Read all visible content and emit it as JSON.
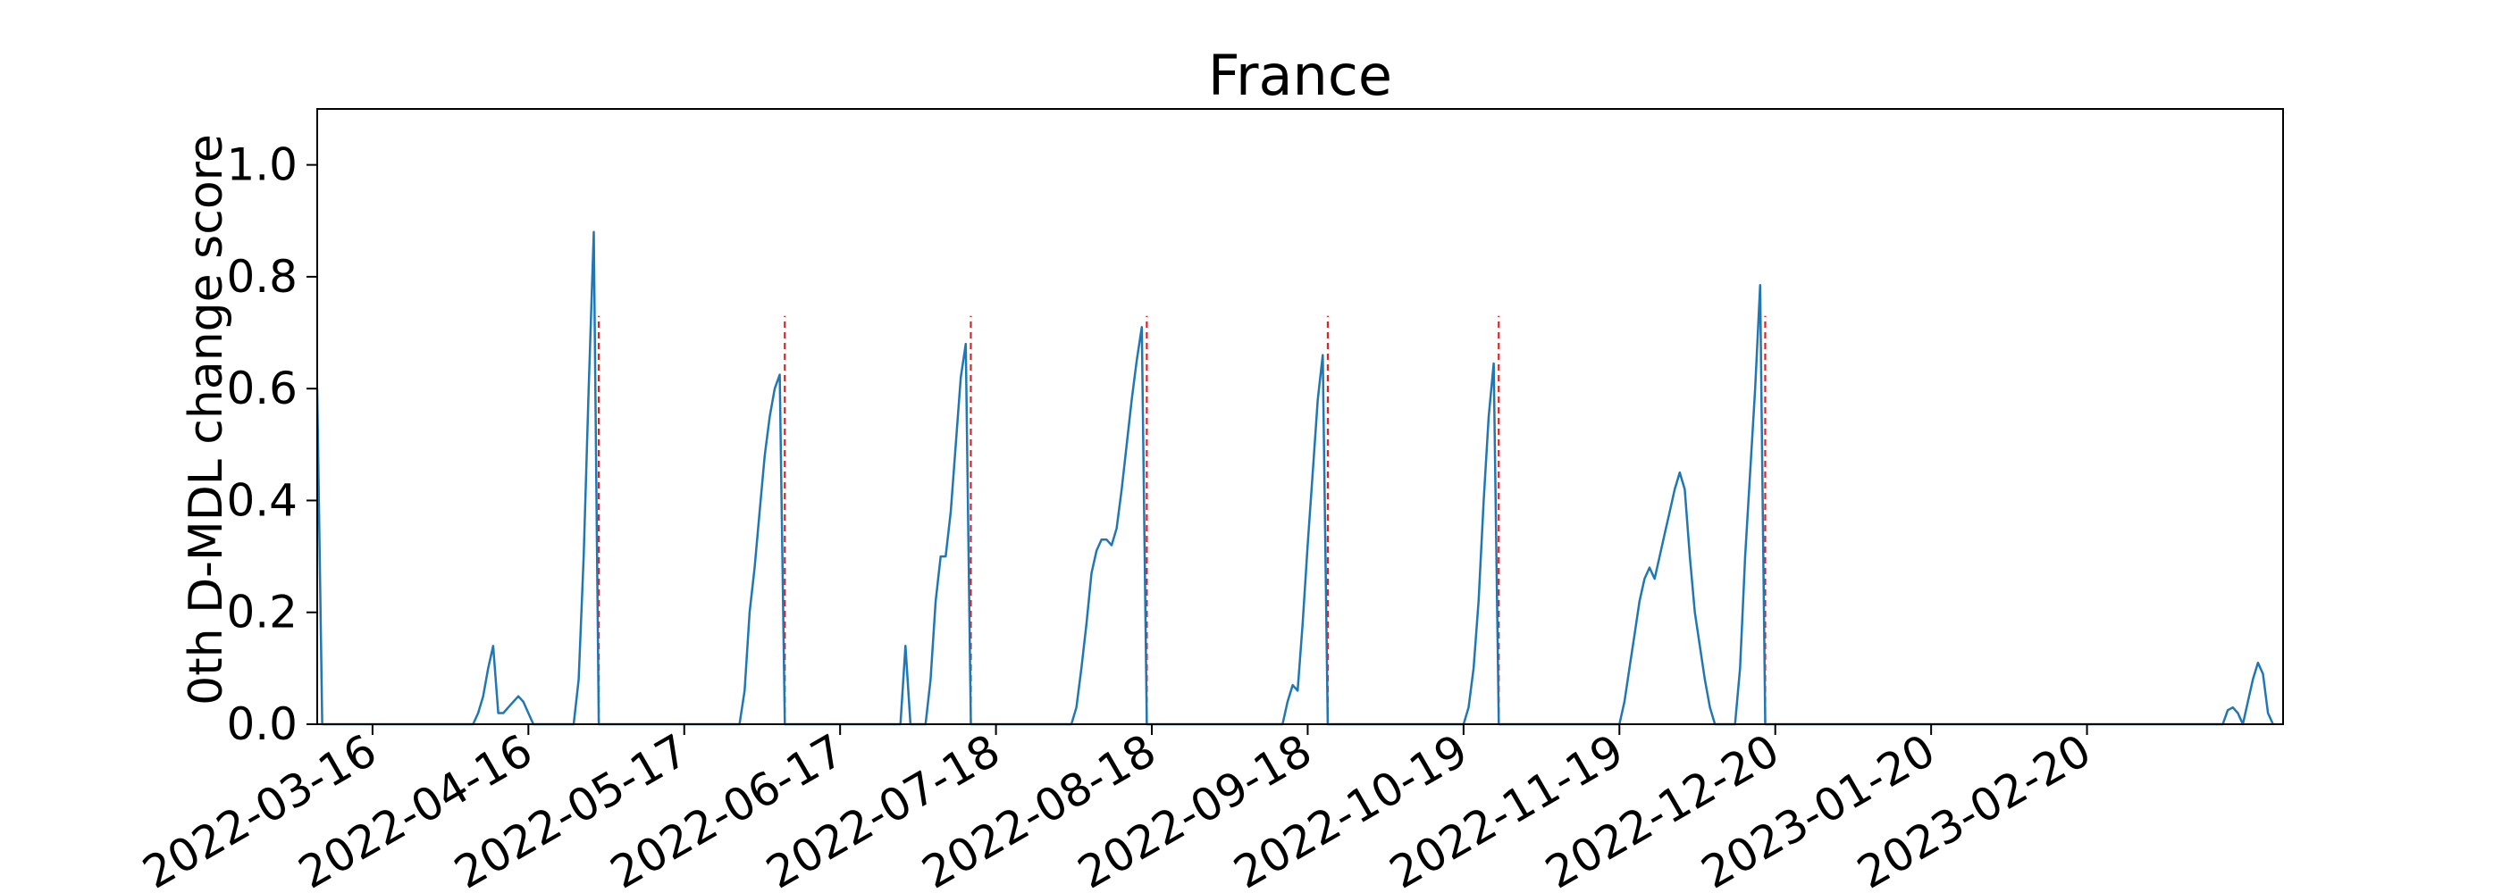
{
  "chart_data": {
    "type": "line",
    "title": "France",
    "xlabel": "",
    "ylabel": "0th D-MDL change score",
    "ylim": [
      0.0,
      1.1
    ],
    "xlim": [
      "2022-03-05",
      "2023-03-31"
    ],
    "yticks": [
      "0.0",
      "0.2",
      "0.4",
      "0.6",
      "0.8",
      "1.0"
    ],
    "xticks": [
      "2022-03-16",
      "2022-04-16",
      "2022-05-17",
      "2022-06-17",
      "2022-07-18",
      "2022-08-18",
      "2022-09-18",
      "2022-10-19",
      "2022-11-19",
      "2022-12-20",
      "2023-01-20",
      "2023-02-20"
    ],
    "grid": false,
    "colors": {
      "line": "#1f77b4",
      "change_points": "#d62728"
    },
    "series": [
      {
        "values": [
          [
            "2022-03-05",
            0.6
          ],
          [
            "2022-03-06",
            0.0
          ],
          [
            "2022-04-05",
            0.0
          ],
          [
            "2022-04-06",
            0.02
          ],
          [
            "2022-04-07",
            0.05
          ],
          [
            "2022-04-08",
            0.1
          ],
          [
            "2022-04-09",
            0.14
          ],
          [
            "2022-04-10",
            0.02
          ],
          [
            "2022-04-11",
            0.02
          ],
          [
            "2022-04-12",
            0.03
          ],
          [
            "2022-04-13",
            0.04
          ],
          [
            "2022-04-14",
            0.05
          ],
          [
            "2022-04-15",
            0.04
          ],
          [
            "2022-04-16",
            0.02
          ],
          [
            "2022-04-17",
            0.0
          ],
          [
            "2022-04-25",
            0.0
          ],
          [
            "2022-04-26",
            0.08
          ],
          [
            "2022-04-27",
            0.3
          ],
          [
            "2022-04-28",
            0.6
          ],
          [
            "2022-04-29",
            0.88
          ],
          [
            "2022-04-30",
            0.0
          ],
          [
            "2022-05-28",
            0.0
          ],
          [
            "2022-05-29",
            0.06
          ],
          [
            "2022-05-30",
            0.2
          ],
          [
            "2022-05-31",
            0.28
          ],
          [
            "2022-06-01",
            0.38
          ],
          [
            "2022-06-02",
            0.48
          ],
          [
            "2022-06-03",
            0.55
          ],
          [
            "2022-06-04",
            0.6
          ],
          [
            "2022-06-05",
            0.625
          ],
          [
            "2022-06-06",
            0.0
          ],
          [
            "2022-06-29",
            0.0
          ],
          [
            "2022-06-30",
            0.14
          ],
          [
            "2022-07-01",
            0.0
          ],
          [
            "2022-07-04",
            0.0
          ],
          [
            "2022-07-05",
            0.08
          ],
          [
            "2022-07-06",
            0.22
          ],
          [
            "2022-07-07",
            0.3
          ],
          [
            "2022-07-08",
            0.3
          ],
          [
            "2022-07-09",
            0.38
          ],
          [
            "2022-07-10",
            0.5
          ],
          [
            "2022-07-11",
            0.62
          ],
          [
            "2022-07-12",
            0.68
          ],
          [
            "2022-07-13",
            0.0
          ],
          [
            "2022-08-02",
            0.0
          ],
          [
            "2022-08-03",
            0.03
          ],
          [
            "2022-08-04",
            0.1
          ],
          [
            "2022-08-05",
            0.18
          ],
          [
            "2022-08-06",
            0.27
          ],
          [
            "2022-08-07",
            0.31
          ],
          [
            "2022-08-08",
            0.33
          ],
          [
            "2022-08-09",
            0.33
          ],
          [
            "2022-08-10",
            0.32
          ],
          [
            "2022-08-11",
            0.35
          ],
          [
            "2022-08-12",
            0.42
          ],
          [
            "2022-08-13",
            0.5
          ],
          [
            "2022-08-14",
            0.58
          ],
          [
            "2022-08-15",
            0.65
          ],
          [
            "2022-08-16",
            0.71
          ],
          [
            "2022-08-17",
            0.0
          ],
          [
            "2022-09-13",
            0.0
          ],
          [
            "2022-09-14",
            0.04
          ],
          [
            "2022-09-15",
            0.07
          ],
          [
            "2022-09-16",
            0.06
          ],
          [
            "2022-09-17",
            0.18
          ],
          [
            "2022-09-18",
            0.32
          ],
          [
            "2022-09-19",
            0.45
          ],
          [
            "2022-09-20",
            0.58
          ],
          [
            "2022-09-21",
            0.66
          ],
          [
            "2022-09-22",
            0.0
          ],
          [
            "2022-10-19",
            0.0
          ],
          [
            "2022-10-20",
            0.03
          ],
          [
            "2022-10-21",
            0.1
          ],
          [
            "2022-10-22",
            0.22
          ],
          [
            "2022-10-23",
            0.4
          ],
          [
            "2022-10-24",
            0.55
          ],
          [
            "2022-10-25",
            0.645
          ],
          [
            "2022-10-26",
            0.0
          ],
          [
            "2022-11-19",
            0.0
          ],
          [
            "2022-11-20",
            0.04
          ],
          [
            "2022-11-21",
            0.1
          ],
          [
            "2022-11-22",
            0.16
          ],
          [
            "2022-11-23",
            0.22
          ],
          [
            "2022-11-24",
            0.26
          ],
          [
            "2022-11-25",
            0.28
          ],
          [
            "2022-11-26",
            0.26
          ],
          [
            "2022-11-27",
            0.3
          ],
          [
            "2022-11-28",
            0.34
          ],
          [
            "2022-11-29",
            0.38
          ],
          [
            "2022-11-30",
            0.42
          ],
          [
            "2022-12-01",
            0.45
          ],
          [
            "2022-12-02",
            0.42
          ],
          [
            "2022-12-03",
            0.3
          ],
          [
            "2022-12-04",
            0.2
          ],
          [
            "2022-12-05",
            0.14
          ],
          [
            "2022-12-06",
            0.08
          ],
          [
            "2022-12-07",
            0.03
          ],
          [
            "2022-12-08",
            0.0
          ],
          [
            "2022-12-12",
            0.0
          ],
          [
            "2022-12-13",
            0.1
          ],
          [
            "2022-12-14",
            0.3
          ],
          [
            "2022-12-15",
            0.45
          ],
          [
            "2022-12-16",
            0.6
          ],
          [
            "2022-12-17",
            0.785
          ],
          [
            "2022-12-18",
            0.0
          ],
          [
            "2023-03-19",
            0.0
          ],
          [
            "2023-03-20",
            0.025
          ],
          [
            "2023-03-21",
            0.03
          ],
          [
            "2023-03-22",
            0.02
          ],
          [
            "2023-03-23",
            0.0
          ],
          [
            "2023-03-24",
            0.04
          ],
          [
            "2023-03-25",
            0.08
          ],
          [
            "2023-03-26",
            0.11
          ],
          [
            "2023-03-27",
            0.09
          ],
          [
            "2023-03-28",
            0.02
          ],
          [
            "2023-03-29",
            0.0
          ]
        ]
      }
    ],
    "change_points": [
      "2022-04-30",
      "2022-06-06",
      "2022-07-13",
      "2022-08-17",
      "2022-09-22",
      "2022-10-26",
      "2022-12-18"
    ]
  }
}
